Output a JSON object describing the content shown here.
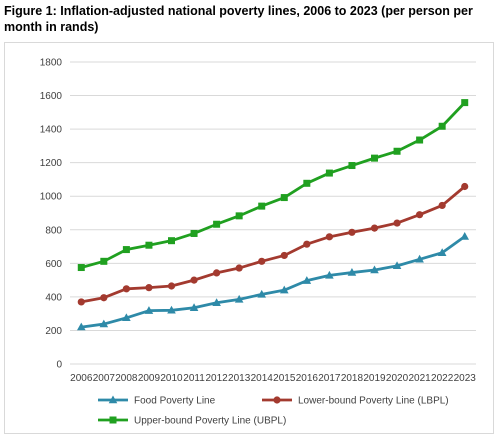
{
  "title": "Figure 1: Inflation-adjusted national poverty lines, 2006 to 2023 (per person per month in rands)",
  "chart_data": {
    "type": "line",
    "title": "Figure 1: Inflation-adjusted national poverty lines, 2006 to 2023 (per person per month in rands)",
    "xlabel": "",
    "ylabel": "",
    "ylim": [
      0,
      1800
    ],
    "yticks": [
      0,
      200,
      400,
      600,
      800,
      1000,
      1200,
      1400,
      1600,
      1800
    ],
    "grid": true,
    "legend_position": "bottom",
    "categories": [
      "2006",
      "2007",
      "2008",
      "2009",
      "2010",
      "2011",
      "2012",
      "2013",
      "2014",
      "2015",
      "2016",
      "2017",
      "2018",
      "2019",
      "2020",
      "2021",
      "2022",
      "2023"
    ],
    "series": [
      {
        "name": "Food Poverty Line",
        "color": "#2e8aa8",
        "marker": "triangle",
        "values": [
          220,
          238,
          275,
          318,
          320,
          335,
          365,
          385,
          415,
          440,
          497,
          528,
          545,
          560,
          585,
          624,
          663,
          760
        ]
      },
      {
        "name": "Lower-bound Poverty Line (LBPL)",
        "color": "#a33a2f",
        "marker": "circle",
        "values": [
          370,
          395,
          448,
          455,
          465,
          500,
          543,
          572,
          612,
          647,
          714,
          758,
          785,
          810,
          840,
          890,
          945,
          1058
        ]
      },
      {
        "name": "Upper-bound Poverty Line (UBPL)",
        "color": "#20a020",
        "marker": "square",
        "values": [
          575,
          612,
          682,
          708,
          735,
          778,
          833,
          883,
          941,
          992,
          1077,
          1138,
          1183,
          1227,
          1268,
          1335,
          1417,
          1558
        ]
      }
    ]
  }
}
